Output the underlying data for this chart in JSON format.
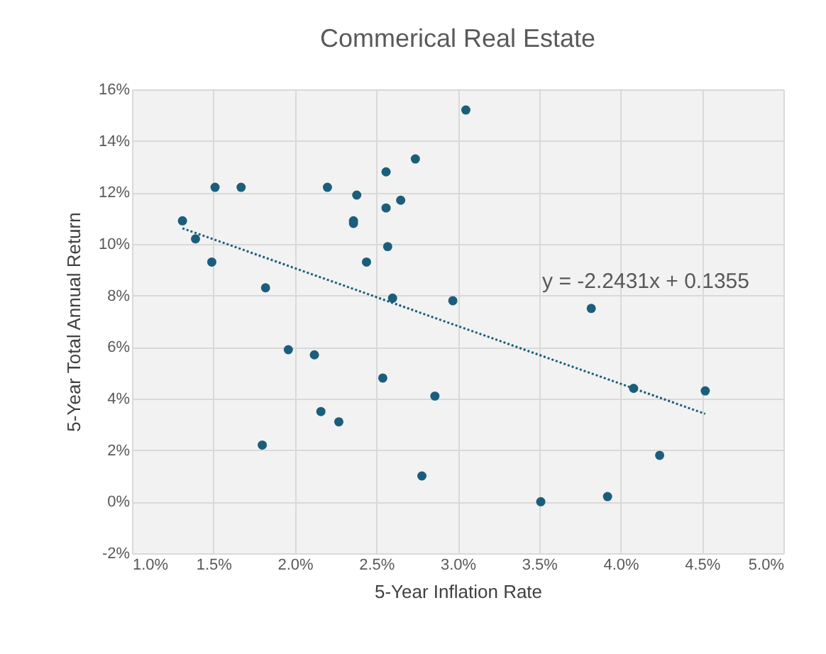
{
  "chart_data": {
    "type": "scatter",
    "title": "Commerical Real Estate",
    "xlabel": "5-Year Inflation Rate",
    "ylabel": "5-Year Total Annual Return",
    "annotations": [
      "y = -2.2431x + 0.1355"
    ],
    "xlim": [
      1,
      5
    ],
    "ylim": [
      -2,
      16
    ],
    "xticks": [
      {
        "value": 1,
        "label": "1.0%"
      },
      {
        "value": 1.5,
        "label": "1.5%"
      },
      {
        "value": 2,
        "label": "2.0%"
      },
      {
        "value": 2.5,
        "label": "2.5%"
      },
      {
        "value": 3,
        "label": "3.0%"
      },
      {
        "value": 3.5,
        "label": "3.5%"
      },
      {
        "value": 4,
        "label": "4.0%"
      },
      {
        "value": 4.5,
        "label": "4.5%"
      },
      {
        "value": 5,
        "label": "5.0%"
      }
    ],
    "yticks": [
      {
        "value": -2,
        "label": "-2%"
      },
      {
        "value": 0,
        "label": "0%"
      },
      {
        "value": 2,
        "label": "2%"
      },
      {
        "value": 4,
        "label": "4%"
      },
      {
        "value": 6,
        "label": "6%"
      },
      {
        "value": 8,
        "label": "8%"
      },
      {
        "value": 10,
        "label": "10%"
      },
      {
        "value": 12,
        "label": "12%"
      },
      {
        "value": 14,
        "label": "14%"
      },
      {
        "value": 16,
        "label": "16%"
      }
    ],
    "grid": true,
    "series": [
      {
        "type": "scatter",
        "marker": "circle",
        "color": "#1b5e7b",
        "x": [
          1.31,
          1.39,
          1.49,
          1.51,
          1.67,
          1.82,
          1.96,
          2.12,
          1.8,
          2.16,
          2.27,
          2.2,
          2.38,
          2.36,
          2.36,
          2.44,
          2.56,
          2.56,
          2.65,
          2.57,
          2.74,
          2.6,
          2.97,
          2.54,
          2.86,
          2.78,
          3.05,
          3.82,
          4.08,
          4.52,
          4.24,
          3.51,
          3.92
        ],
        "values": [
          10.9,
          10.2,
          9.3,
          12.2,
          12.2,
          8.3,
          5.9,
          5.7,
          2.2,
          3.5,
          3.1,
          12.2,
          11.9,
          10.9,
          10.8,
          9.3,
          12.8,
          11.4,
          11.7,
          9.9,
          13.3,
          7.9,
          7.8,
          4.8,
          4.1,
          1.0,
          15.2,
          7.5,
          4.4,
          4.3,
          1.8,
          0.0,
          0.2
        ]
      },
      {
        "type": "line",
        "color": "#1b5e7b",
        "x": [
          1.31,
          4.52
        ],
        "values": [
          10.61,
          3.41
        ],
        "line_style": "dotted"
      }
    ]
  }
}
